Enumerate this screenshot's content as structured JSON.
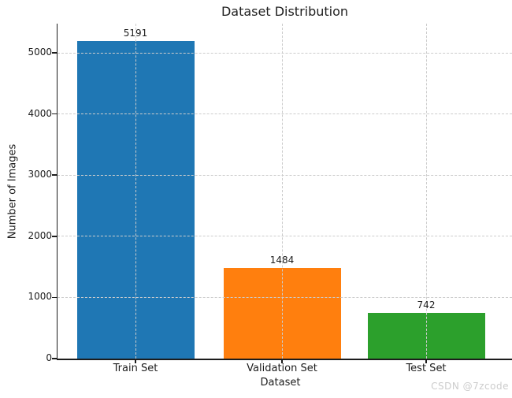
{
  "chart_data": {
    "type": "bar",
    "title": "Dataset Distribution",
    "xlabel": "Dataset",
    "ylabel": "Number of Images",
    "categories": [
      "Train Set",
      "Validation Set",
      "Test Set"
    ],
    "values": [
      5191,
      1484,
      742
    ],
    "bar_colors": [
      "#1f77b4",
      "#ff7f0e",
      "#2ca02c"
    ],
    "yticks": [
      0,
      1000,
      2000,
      3000,
      4000,
      5000
    ],
    "ylim": [
      0,
      5477
    ],
    "grid": "dashed, light gray, drawn above bars, horizontal at yticks and vertical at bar centers",
    "legend_position": "none"
  },
  "watermark": {
    "text": "CSDN @7zcode"
  }
}
